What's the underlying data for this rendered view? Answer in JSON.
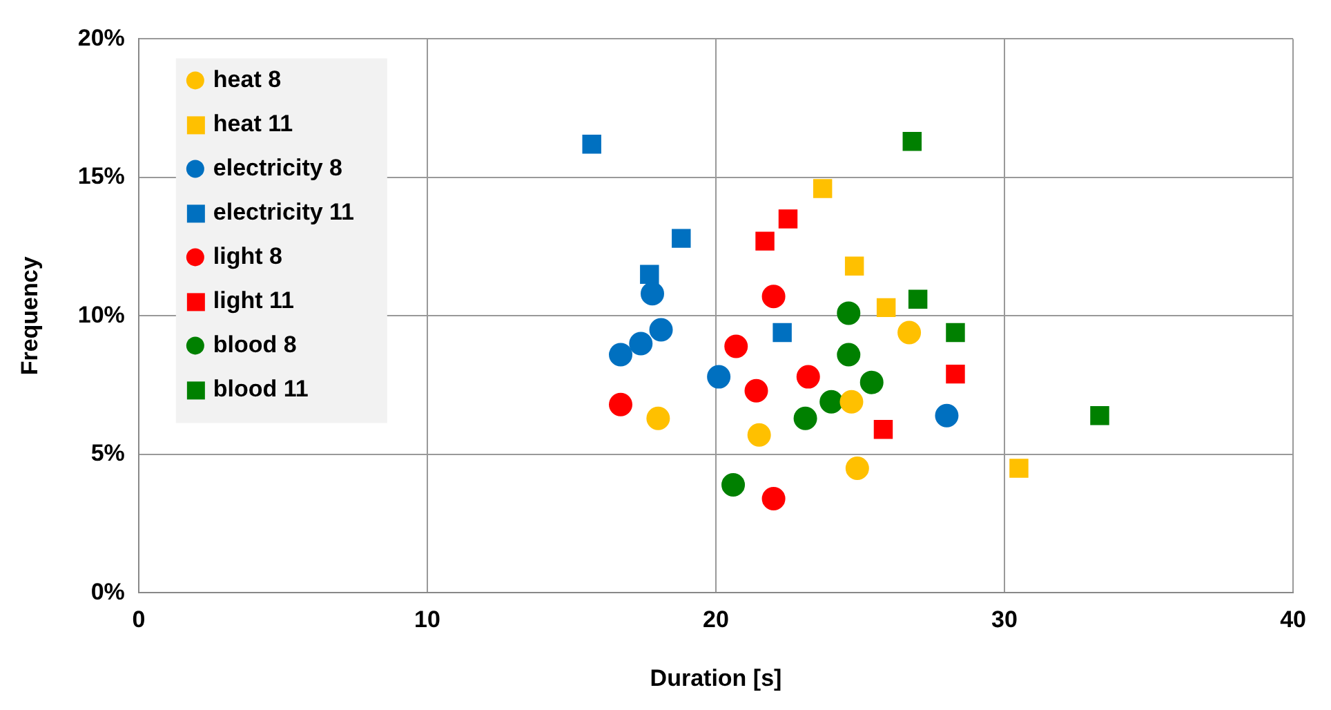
{
  "chart_data": {
    "type": "scatter",
    "xlabel": "Duration [s]",
    "ylabel": "Frequency",
    "xlim": [
      0,
      40
    ],
    "xticks": [
      0,
      10,
      20,
      30,
      40
    ],
    "ylim": [
      0,
      20
    ],
    "yticks": [
      {
        "value": 0,
        "label": "0%"
      },
      {
        "value": 5,
        "label": "5%"
      },
      {
        "value": 10,
        "label": "10%"
      },
      {
        "value": 15,
        "label": "15%"
      },
      {
        "value": 20,
        "label": "20%"
      }
    ],
    "grid": true,
    "legend": "top left",
    "series": [
      {
        "name": "heat 8",
        "color": "#ffc000",
        "marker": "circle",
        "x": [
          18.0,
          21.5,
          24.7,
          24.9,
          26.7
        ],
        "values": [
          6.3,
          5.7,
          6.9,
          4.5,
          9.4
        ]
      },
      {
        "name": "heat 11",
        "color": "#ffc000",
        "marker": "square",
        "x": [
          23.7,
          24.8,
          25.9,
          30.5
        ],
        "values": [
          14.6,
          11.8,
          10.3,
          4.5
        ]
      },
      {
        "name": "electricity 8",
        "color": "#0070c0",
        "marker": "circle",
        "x": [
          17.8,
          18.1,
          17.4,
          16.7,
          20.1,
          28.0
        ],
        "values": [
          10.8,
          9.5,
          9.0,
          8.6,
          7.8,
          6.4
        ]
      },
      {
        "name": "electricity 11",
        "color": "#0070c0",
        "marker": "square",
        "x": [
          15.7,
          18.8,
          17.7,
          22.3
        ],
        "values": [
          16.2,
          12.8,
          11.5,
          9.4
        ]
      },
      {
        "name": "light 8",
        "color": "#ff0000",
        "marker": "circle",
        "x": [
          22.0,
          20.7,
          23.2,
          21.4,
          16.7,
          22.0
        ],
        "values": [
          10.7,
          8.9,
          7.8,
          7.3,
          6.8,
          3.4
        ]
      },
      {
        "name": "light 11",
        "color": "#ff0000",
        "marker": "square",
        "x": [
          22.5,
          21.7,
          28.3,
          25.8
        ],
        "values": [
          13.5,
          12.7,
          7.9,
          5.9
        ]
      },
      {
        "name": "blood 8",
        "color": "#008000",
        "marker": "circle",
        "x": [
          24.6,
          24.6,
          25.4,
          24.0,
          23.1,
          20.6
        ],
        "values": [
          10.1,
          8.6,
          7.6,
          6.9,
          6.3,
          3.9
        ]
      },
      {
        "name": "blood 11",
        "color": "#008000",
        "marker": "square",
        "x": [
          26.8,
          27.0,
          28.3,
          33.3
        ],
        "values": [
          16.3,
          10.6,
          9.4,
          6.4
        ]
      }
    ]
  }
}
